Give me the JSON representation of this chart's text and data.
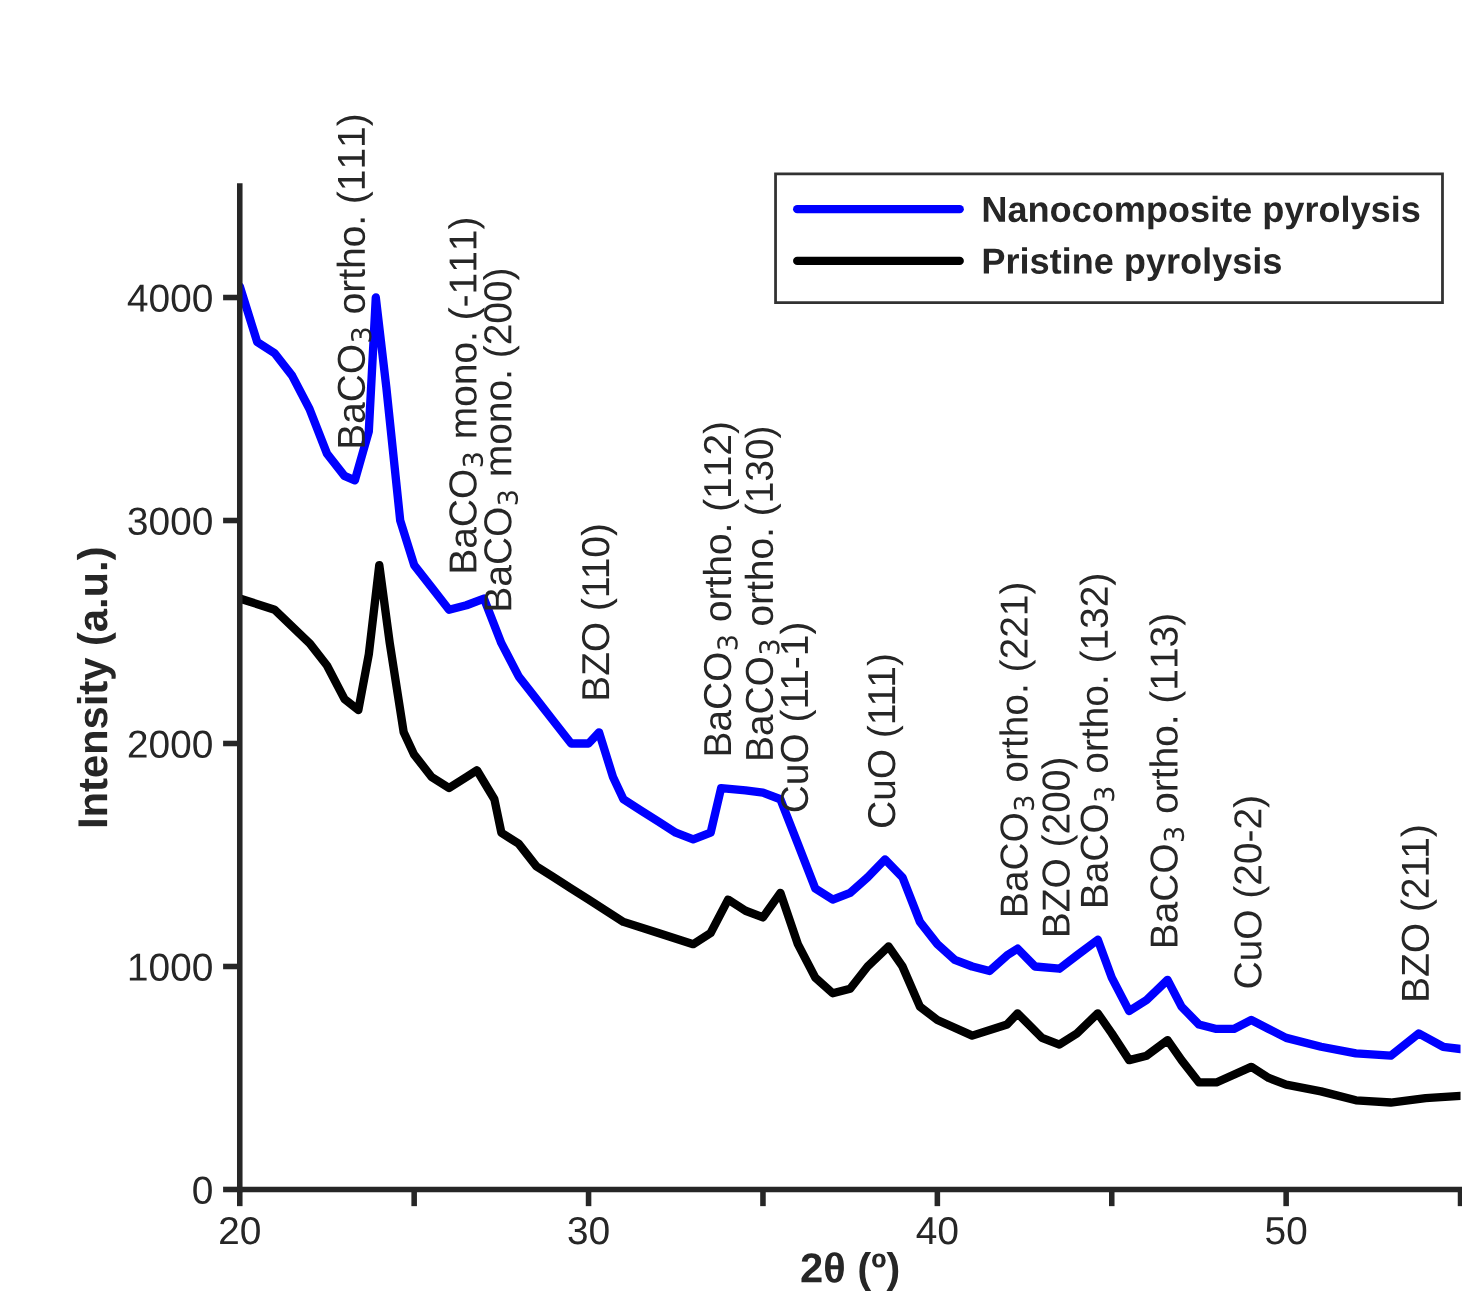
{
  "chart_data": {
    "type": "line",
    "xlabel": "2θ (º)",
    "ylabel": "Intensity (a.u.)",
    "xlim": [
      20,
      55
    ],
    "ylim": [
      0,
      4500
    ],
    "xticks": [
      20,
      {
        "value": 25,
        "label": null
      },
      30,
      {
        "value": 35,
        "label": null
      },
      40,
      {
        "value": 45,
        "label": null
      },
      50,
      {
        "value": 55,
        "label": null
      }
    ],
    "yticks": [
      0,
      1000,
      2000,
      3000,
      4000
    ],
    "grid": false,
    "legend": "top right",
    "marker": "none",
    "line_style": "solid",
    "series": [
      {
        "name": "Nanocomposite pyrolysis",
        "color": "#0000ff",
        "x": [
          20,
          20.5,
          21,
          21.5,
          22,
          22.5,
          23,
          23.3,
          23.7,
          23.9,
          24.2,
          24.6,
          25,
          25.5,
          26,
          26.5,
          27,
          27.5,
          28,
          28.5,
          29,
          29.5,
          30,
          30.3,
          30.7,
          31,
          31.5,
          32,
          32.5,
          33,
          33.5,
          33.8,
          34.5,
          35,
          35.5,
          36,
          36.5,
          37,
          37.5,
          38,
          38.5,
          39,
          39.5,
          40,
          40.5,
          41,
          41.5,
          42,
          42.3,
          42.8,
          43.5,
          44,
          44.6,
          45,
          45.5,
          46,
          46.6,
          47,
          47.5,
          48,
          48.5,
          49,
          49.5,
          50,
          51,
          52,
          53,
          53.8,
          54.5,
          55
        ],
        "values": [
          4050,
          3800,
          3750,
          3650,
          3500,
          3300,
          3200,
          3180,
          3400,
          4000,
          3600,
          3000,
          2800,
          2700,
          2600,
          2620,
          2650,
          2450,
          2300,
          2200,
          2100,
          2000,
          2000,
          2050,
          1850,
          1750,
          1700,
          1650,
          1600,
          1570,
          1600,
          1800,
          1790,
          1780,
          1750,
          1550,
          1350,
          1300,
          1330,
          1400,
          1480,
          1400,
          1200,
          1100,
          1030,
          1000,
          980,
          1050,
          1080,
          1000,
          990,
          1050,
          1120,
          950,
          800,
          850,
          940,
          820,
          740,
          720,
          720,
          760,
          720,
          680,
          640,
          610,
          600,
          700,
          640,
          630
        ]
      },
      {
        "name": "Pristine pyrolysis",
        "color": "#000000",
        "x": [
          20,
          21,
          22,
          22.5,
          23,
          23.4,
          23.7,
          24,
          24.3,
          24.7,
          25,
          25.5,
          26,
          26.5,
          26.8,
          27.3,
          27.5,
          28,
          28.5,
          29,
          29.5,
          30,
          30.5,
          31,
          32,
          33,
          33.5,
          34,
          34.5,
          35,
          35.5,
          36,
          36.5,
          37,
          37.5,
          38,
          38.6,
          39,
          39.5,
          40,
          41,
          42,
          42.3,
          43,
          43.5,
          44,
          44.6,
          45,
          45.5,
          46,
          46.6,
          47,
          47.5,
          48,
          49,
          49.5,
          50,
          51,
          52,
          53,
          54,
          55
        ],
        "values": [
          2650,
          2600,
          2450,
          2350,
          2200,
          2150,
          2400,
          2800,
          2450,
          2050,
          1950,
          1850,
          1800,
          1850,
          1880,
          1750,
          1600,
          1550,
          1450,
          1400,
          1350,
          1300,
          1250,
          1200,
          1150,
          1100,
          1150,
          1300,
          1250,
          1220,
          1330,
          1100,
          950,
          880,
          900,
          1000,
          1090,
          1000,
          820,
          760,
          690,
          740,
          790,
          680,
          650,
          700,
          790,
          700,
          580,
          600,
          670,
          580,
          480,
          480,
          550,
          500,
          470,
          440,
          400,
          390,
          410,
          420
        ]
      }
    ],
    "annotations": [
      {
        "text": "BaCO$_{3}$ ortho. (111)",
        "x": 23.3,
        "y": 3180
      },
      {
        "text": "BaCO$_{3}$ mono. (-111)",
        "x": 26.5,
        "y": 2620
      },
      {
        "text": "BaCO$_{3}$ mono. (200)",
        "x": 27.5,
        "y": 2450
      },
      {
        "text": "BZO (110)",
        "x": 30.3,
        "y": 2050
      },
      {
        "text": "BaCO$_{3}$ ortho. (112)",
        "x": 33.8,
        "y": 1800
      },
      {
        "text": "BaCO$_{3}$ ortho. (130)",
        "x": 35,
        "y": 1780
      },
      {
        "text": "CuO (11-1)",
        "x": 36,
        "y": 1550
      },
      {
        "text": "CuO (111)",
        "x": 38.5,
        "y": 1480
      },
      {
        "text": "BaCO$_{3}$ ortho. (221)",
        "x": 42.3,
        "y": 1080
      },
      {
        "text": "BZO (200)",
        "x": 43.5,
        "y": 990
      },
      {
        "text": "BaCO$_{3}$ ortho. (132)",
        "x": 44.6,
        "y": 1120
      },
      {
        "text": "BaCO$_{3}$ ortho. (113)",
        "x": 46.6,
        "y": 940
      },
      {
        "text": "CuO (20-2)",
        "x": 49,
        "y": 760
      },
      {
        "text": "BZO (211)",
        "x": 53.8,
        "y": 700
      }
    ]
  }
}
